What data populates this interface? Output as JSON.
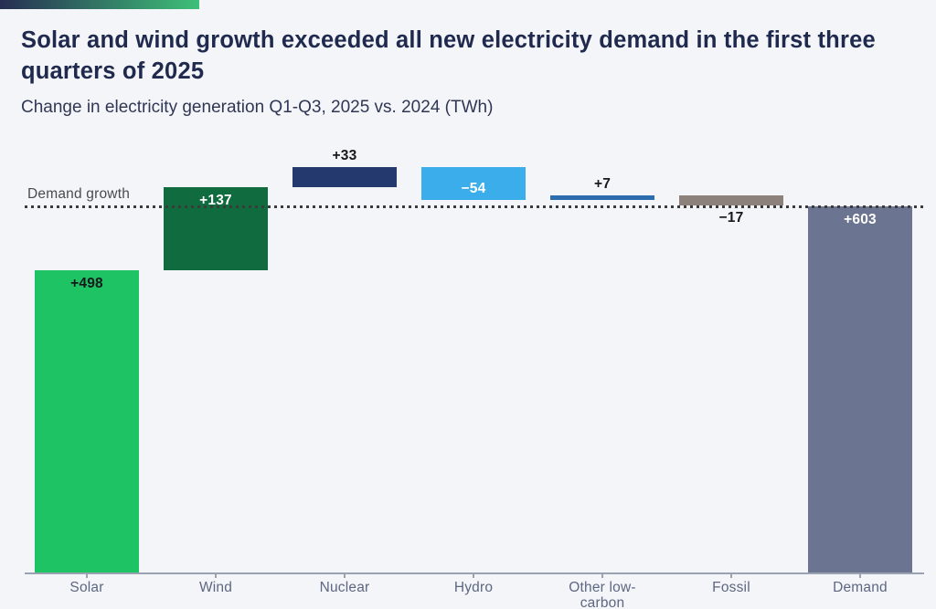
{
  "header": {
    "title": "Solar and wind growth exceeded all new electricity demand in the first three quarters of 2025",
    "subtitle": "Change in electricity generation Q1-Q3, 2025 vs. 2024 (TWh)"
  },
  "brand": {
    "gradient_start": "#272e52",
    "gradient_end": "#3ec078"
  },
  "chart_data": {
    "type": "bar",
    "subtype": "waterfall",
    "title": "Solar and wind growth exceeded all new electricity demand in the first three quarters of 2025",
    "subtitle_unit": "TWh",
    "baseline_label": "Demand growth",
    "demand_reference": 603,
    "ylim": [
      0,
      680
    ],
    "gridlines": false,
    "categories": [
      "Solar",
      "Wind",
      "Nuclear",
      "Hydro",
      "Other low-carbon",
      "Fossil",
      "Demand"
    ],
    "bars": [
      {
        "category": "Solar",
        "value": 498,
        "display": "+498",
        "kind": "delta",
        "color": "#1ec464",
        "label_color": "#16181c",
        "label_placement": "inside-top"
      },
      {
        "category": "Wind",
        "value": 137,
        "display": "+137",
        "kind": "delta",
        "color": "#106b3e",
        "label_color": "#ffffff",
        "label_placement": "inside-top"
      },
      {
        "category": "Nuclear",
        "value": 33,
        "display": "+33",
        "kind": "delta",
        "color": "#243a6e",
        "label_color": "#16181c",
        "label_placement": "above"
      },
      {
        "category": "Hydro",
        "value": -54,
        "display": "−54",
        "kind": "delta",
        "color": "#3badea",
        "label_color": "#ffffff",
        "label_placement": "inside-bottom"
      },
      {
        "category": "Other low-carbon",
        "value": 7,
        "display": "+7",
        "kind": "delta",
        "color": "#2d6dad",
        "label_color": "#16181c",
        "label_placement": "above"
      },
      {
        "category": "Fossil",
        "value": -17,
        "display": "−17",
        "kind": "delta",
        "color": "#8c817b",
        "label_color": "#16181c",
        "label_placement": "below"
      },
      {
        "category": "Demand",
        "value": 603,
        "display": "+603",
        "kind": "total",
        "color": "#6b7490",
        "label_color": "#ffffff",
        "label_placement": "inside-top"
      }
    ],
    "colors": {
      "background": "#f4f5f9",
      "reference_line": "#3b3b3b",
      "axis": "#9aa1b0",
      "axis_labels": "#5d6781",
      "title": "#202a4e"
    }
  }
}
